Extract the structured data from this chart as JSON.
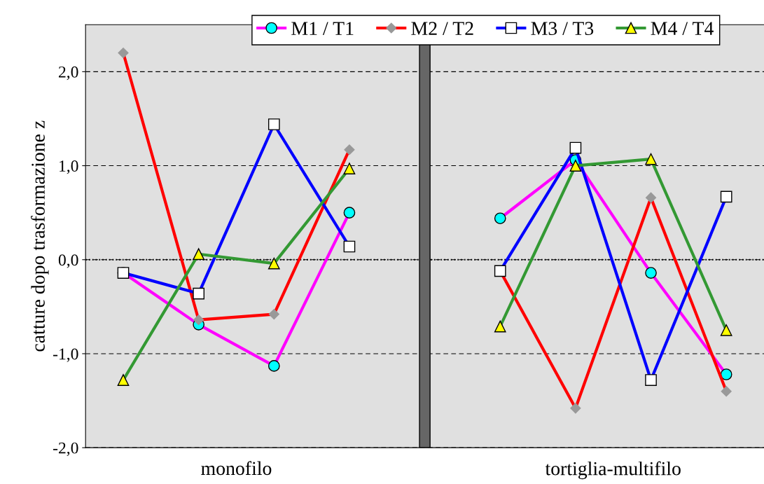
{
  "chart_data": {
    "type": "line",
    "ylabel": "catture dopo trasformazione z",
    "categories": [
      null,
      null,
      null,
      null,
      null,
      null,
      null,
      null,
      null
    ],
    "annotations": [
      "monofilo",
      "tortiglia-multifilo"
    ],
    "ylim": [
      -2,
      2.5
    ],
    "yticks": [
      {
        "value": -2,
        "label": "-2,0"
      },
      {
        "value": -1,
        "label": "-1,0"
      },
      {
        "value": 0,
        "label": "0,0"
      },
      {
        "value": 1,
        "label": "1,0"
      },
      {
        "value": 2,
        "label": "2,0"
      }
    ],
    "grid": "y",
    "legend": "top",
    "ref_lines": [
      {
        "axis": "y",
        "value": 0,
        "color": "#000000",
        "line_style": "dotted"
      }
    ],
    "series": [
      {
        "name": "M1 / T1",
        "color": "#ff00ff",
        "marker": "circle",
        "values": [
          -0.14,
          -0.69,
          -1.13,
          0.5,
          null,
          0.44,
          1.06,
          -0.14,
          -1.22
        ]
      },
      {
        "name": "M2 / T2",
        "color": "#ff0000",
        "marker": "diamond",
        "values": [
          2.2,
          -0.64,
          -0.58,
          1.17,
          null,
          -0.12,
          -1.58,
          0.66,
          -1.4
        ]
      },
      {
        "name": "M3 / T3",
        "color": "#0000ff",
        "marker": "square",
        "values": [
          -0.14,
          -0.36,
          1.44,
          0.14,
          null,
          -0.12,
          1.19,
          -1.28,
          0.67
        ]
      },
      {
        "name": "M4 / T4",
        "color": "#339933",
        "marker": "triangle",
        "values": [
          -1.28,
          0.06,
          -0.04,
          0.97,
          null,
          -0.71,
          1.0,
          1.07,
          -0.75
        ]
      }
    ]
  }
}
